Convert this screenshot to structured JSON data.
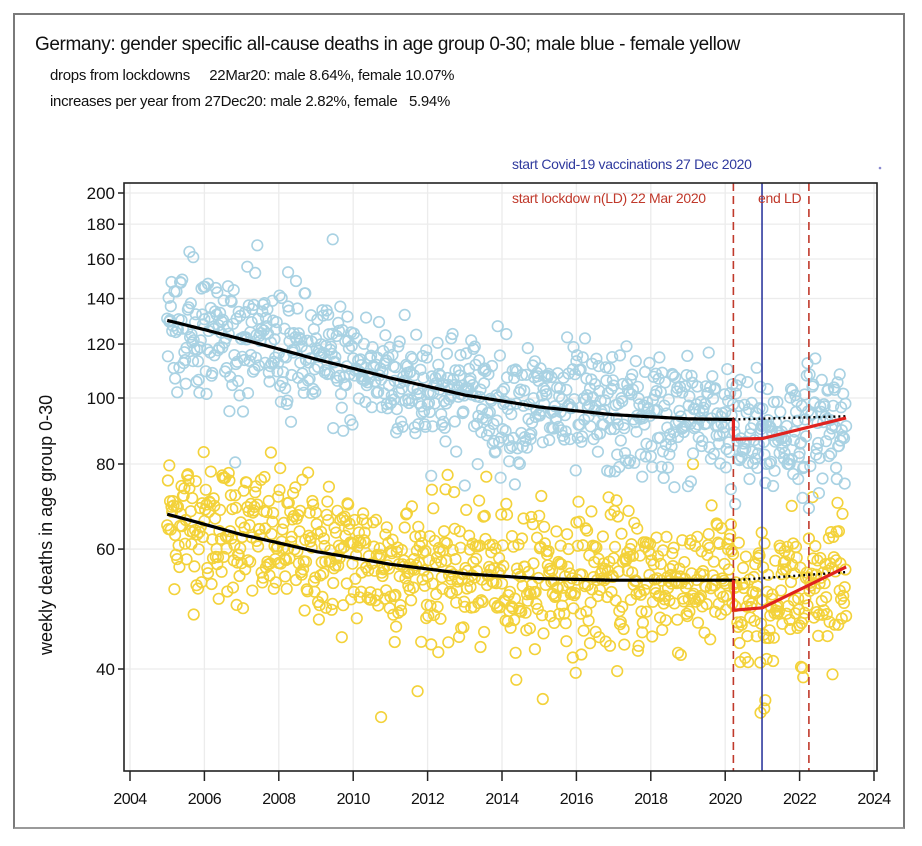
{
  "chart_data": {
    "type": "scatter",
    "title": "Germany: gender specific all-cause deaths in age group 0-30; male blue - female yellow",
    "subtitle_lines": [
      "drops from lockdowns     22Mar20: male 8.64%, female 10.07%",
      "increases per year from 27Dec20: male 2.82%, female   5.94%"
    ],
    "xlabel": "",
    "ylabel": "weekly deaths in age group 0-30",
    "y_scale": "log",
    "xlim": [
      2003.8,
      2024.2
    ],
    "ylim": [
      31,
      205
    ],
    "x_ticks": [
      2004,
      2006,
      2008,
      2010,
      2012,
      2014,
      2016,
      2018,
      2020,
      2022,
      2024
    ],
    "y_ticks": [
      40,
      60,
      80,
      100,
      120,
      140,
      160,
      180,
      200
    ],
    "grid": true,
    "legend": "none (colors described in title)",
    "colors": {
      "male": "#a9d2e3",
      "female": "#f3d23a",
      "trend": "#000000",
      "lockdown_fit": "#e0231f",
      "vaccination_line": "#2f3a9e",
      "lockdown_line": "#c0392b"
    },
    "series": [
      {
        "name": "male",
        "marker": "open-circle",
        "x_range": [
          2005.0,
          2023.25
        ],
        "typical_spread": [
          80,
          160
        ],
        "trend_prelockdown": {
          "x": [
            2005.0,
            2007.0,
            2009.0,
            2011.0,
            2013.0,
            2015.0,
            2017.0,
            2019.0,
            2020.22
          ],
          "y": [
            130,
            122,
            114,
            107,
            101,
            97,
            94.5,
            93.2,
            93
          ]
        },
        "trend_extrapolated_dotted": {
          "x": [
            2020.22,
            2023.25
          ],
          "y": [
            93,
            94
          ]
        },
        "lockdown_fit": {
          "x": [
            2020.22,
            2020.22,
            2021.0,
            2023.25
          ],
          "y": [
            93,
            87,
            87.2,
            93.5
          ]
        },
        "outliers": [
          {
            "x": 2009.45,
            "y": 171
          },
          {
            "x": 2005.7,
            "y": 161
          },
          {
            "x": 2008.25,
            "y": 153
          }
        ]
      },
      {
        "name": "female",
        "marker": "open-circle",
        "x_range": [
          2005.0,
          2023.25
        ],
        "typical_spread": [
          40,
          87
        ],
        "trend_prelockdown": {
          "x": [
            2005.0,
            2007.0,
            2009.0,
            2011.0,
            2013.0,
            2015.0,
            2017.0,
            2019.0,
            2020.22
          ],
          "y": [
            67.5,
            63,
            59.5,
            57,
            55.2,
            54.3,
            54,
            54,
            54
          ]
        },
        "trend_extrapolated_dotted": {
          "x": [
            2020.22,
            2023.25
          ],
          "y": [
            54,
            55.5
          ]
        },
        "lockdown_fit": {
          "x": [
            2020.22,
            2020.22,
            2021.0,
            2023.25
          ],
          "y": [
            54,
            48.8,
            49.2,
            56.5
          ]
        },
        "outliers": [
          {
            "x": 2010.75,
            "y": 34
          },
          {
            "x": 2020.95,
            "y": 34.5
          },
          {
            "x": 2021.05,
            "y": 35
          }
        ]
      }
    ],
    "annotations": [
      {
        "label": "start Covid-19 vaccinations 27 Dec 2020",
        "x": 2020.99,
        "style": "solid",
        "color": "vaccination_line"
      },
      {
        "label": "start lockdow n(LD) 22 Mar 2020",
        "x": 2020.22,
        "style": "dashed",
        "color": "lockdown_line"
      },
      {
        "label": "end LD",
        "x": 2022.25,
        "style": "dashed",
        "color": "lockdown_line"
      }
    ]
  }
}
